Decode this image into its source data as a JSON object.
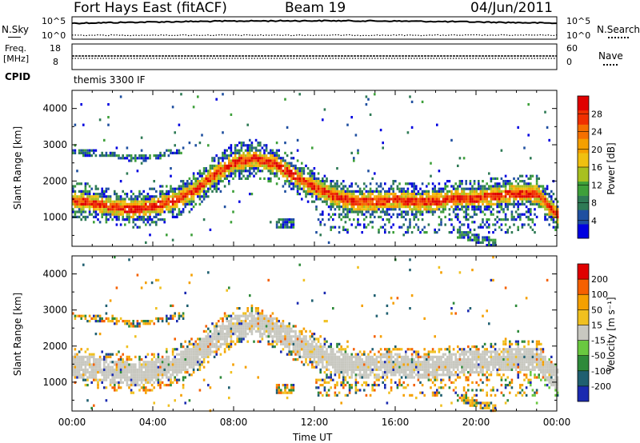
{
  "header": {
    "station": "Fort Hays East (fitACF)",
    "beam": "Beam 19",
    "date": "04/Jun/2011"
  },
  "noise_panel": {
    "left_label": "N.Sky",
    "right_label": "N.Search",
    "left_ticks": [
      "10^5",
      "10^0"
    ],
    "right_ticks": [
      "10^5",
      "10^0"
    ]
  },
  "freq_panel": {
    "left_label": "Freq.",
    "left_unit": "[MHz]",
    "right_label": "Nave",
    "left_ticks": [
      "18",
      "8"
    ],
    "right_ticks": [
      "60",
      "0"
    ]
  },
  "cpid": {
    "label": "CPID",
    "value": "themis 3300 IF"
  },
  "power_panel": {
    "ylabel": "Slant Range [km]",
    "yticks": [
      "4000",
      "3000",
      "2000",
      "1000"
    ],
    "colorbar_label": "Power [dB]",
    "colorbar_ticks": [
      "28",
      "24",
      "20",
      "16",
      "12",
      "8",
      "4"
    ],
    "colors": [
      "#0000e0",
      "#1f4fa0",
      "#2e7a55",
      "#3ea03a",
      "#a8c020",
      "#f0c010",
      "#f5a000",
      "#f57000",
      "#f03000",
      "#e00000"
    ]
  },
  "velocity_panel": {
    "ylabel": "Slant Range [km]",
    "yticks": [
      "4000",
      "3000",
      "2000",
      "1000"
    ],
    "colorbar_label": "Velocity [m s⁻¹]",
    "colorbar_ticks": [
      "200",
      "100",
      "50",
      "15",
      "-15",
      "-50",
      "-100",
      "-200"
    ],
    "colors": [
      "#1a2ab0",
      "#1f5f70",
      "#2e8a3a",
      "#6ac840",
      "#c8c8c0",
      "#f0c020",
      "#f5a000",
      "#f56000",
      "#e00000"
    ]
  },
  "xaxis": {
    "xlabel": "Time UT",
    "ticks": [
      "00:00",
      "04:00",
      "08:00",
      "12:00",
      "16:00",
      "20:00",
      "00:00"
    ]
  },
  "chart_data": {
    "type": "heatmap",
    "title": "Fort Hays East (fitACF)",
    "x_label": "Time UT",
    "x_range_hours": [
      0,
      24
    ],
    "y_label": "Slant Range [km]",
    "y_range_km": [
      200,
      4500
    ],
    "power_scale_db": [
      0,
      30
    ],
    "velocity_scale_ms": [
      -250,
      250
    ],
    "main_echo_band": {
      "time_h": [
        0,
        1,
        2,
        3,
        4,
        5,
        6,
        7,
        8,
        9,
        10,
        11,
        12,
        13,
        14,
        15,
        16,
        17,
        18,
        19,
        20,
        21,
        22,
        23,
        24
      ],
      "range_km": [
        1500,
        1420,
        1320,
        1250,
        1330,
        1500,
        1750,
        2200,
        2550,
        2650,
        2500,
        2150,
        1850,
        1600,
        1450,
        1470,
        1520,
        1450,
        1470,
        1560,
        1560,
        1620,
        1700,
        1680,
        1080
      ]
    },
    "upper_band": {
      "time_h": [
        0,
        1,
        2,
        3,
        4,
        5
      ],
      "range_km": [
        2850,
        2800,
        2750,
        2650,
        2700,
        2850
      ]
    },
    "noise_series": [
      {
        "name": "N.Sky",
        "level": "high"
      },
      {
        "name": "N.Search",
        "level": "low"
      }
    ]
  }
}
